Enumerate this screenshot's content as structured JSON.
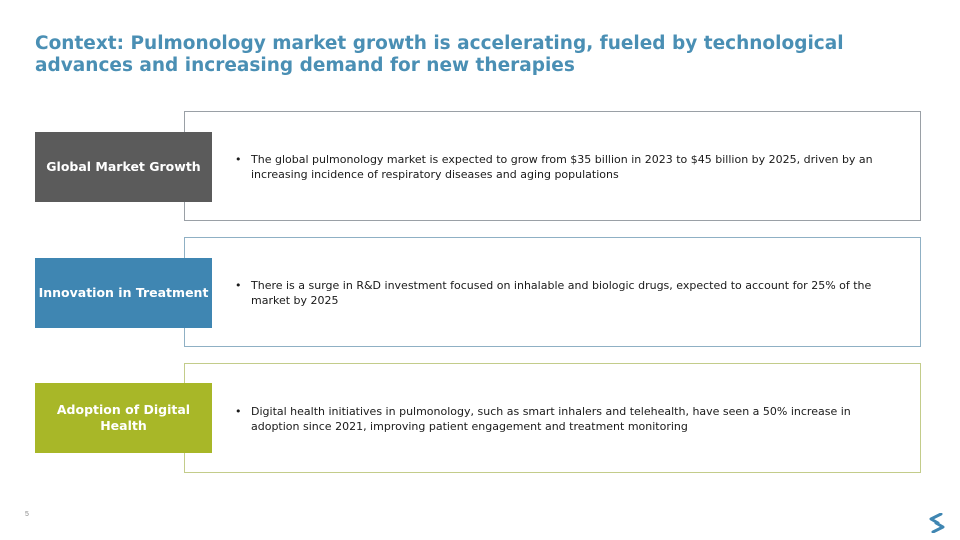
{
  "slide": {
    "title": "Context: Pulmonology market growth is accelerating, fueled by technological advances and increasing demand for new therapies",
    "page_number": "5"
  },
  "rows": [
    {
      "label": "Global Market Growth",
      "label_color": "#5b5b5b",
      "border_color": "#9aa0a6",
      "bullet": "The global pulmonology market is expected to grow from $35 billion in 2023 to $45 billion by 2025, driven by an increasing incidence of respiratory diseases and aging populations"
    },
    {
      "label": "Innovation in Treatment",
      "label_color": "#3f86b2",
      "border_color": "#8fb0c4",
      "bullet": "There is a surge in R&D investment focused on inhalable and biologic drugs, expected to account for 25% of the market by 2025"
    },
    {
      "label": "Adoption of Digital Health",
      "label_color": "#a8b728",
      "border_color": "#c3cc8a",
      "bullet": "Digital health initiatives in pulmonology, such as smart inhalers and telehealth, have seen a 50% increase in adoption since 2021, improving patient engagement and treatment monitoring"
    }
  ],
  "colors": {
    "title": "#4a8fb4",
    "logo": "#3f86b2"
  },
  "icons": {
    "bullet": "bullet-dot",
    "logo": "company-logo-icon"
  }
}
